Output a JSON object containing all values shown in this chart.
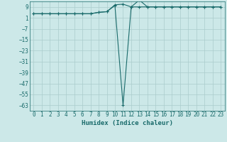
{
  "xlabel": "Humidex (Indice chaleur)",
  "bg_color": "#cce8e8",
  "grid_color": "#aacccc",
  "line_color": "#1a6b6b",
  "x_values": [
    0,
    1,
    2,
    3,
    4,
    5,
    6,
    7,
    8,
    9,
    10,
    11,
    12,
    13,
    14,
    15,
    16,
    17,
    18,
    19,
    20,
    21,
    22,
    23
  ],
  "y_line1": [
    4,
    4,
    4,
    4,
    4,
    4,
    4,
    4,
    5,
    5.5,
    10.5,
    11,
    9,
    9,
    9,
    9,
    9,
    9,
    9,
    9,
    9,
    9,
    9,
    9
  ],
  "y_line2": [
    4,
    4,
    4,
    4,
    4,
    4,
    4,
    4,
    5,
    5.5,
    10,
    -63,
    9,
    14,
    9,
    9,
    9,
    9,
    9,
    9,
    9,
    9,
    9,
    9
  ],
  "ylim": [
    -67,
    13
  ],
  "xlim": [
    -0.5,
    23.5
  ],
  "yticks": [
    9,
    1,
    -7,
    -15,
    -23,
    -31,
    -39,
    -47,
    -55,
    -63
  ],
  "xticks": [
    0,
    1,
    2,
    3,
    4,
    5,
    6,
    7,
    8,
    9,
    10,
    11,
    12,
    13,
    14,
    15,
    16,
    17,
    18,
    19,
    20,
    21,
    22,
    23
  ],
  "tick_fontsize": 5.5,
  "xlabel_fontsize": 6.5
}
